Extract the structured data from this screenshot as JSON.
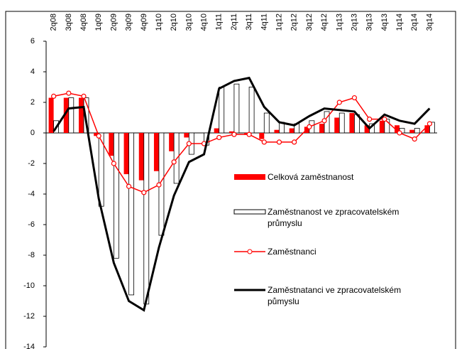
{
  "chart_data": {
    "type": "bar_line",
    "categories": [
      "2q08",
      "3q08",
      "4q08",
      "1q09",
      "2q09",
      "3q09",
      "4q09",
      "1q10",
      "2q10",
      "3q10",
      "4q10",
      "1q11",
      "2q11",
      "3q11",
      "4q11",
      "1q12",
      "2q12",
      "3q12",
      "4q12",
      "1q13",
      "2q13",
      "3q13",
      "4q13",
      "1q14",
      "2q14",
      "3q14"
    ],
    "series": [
      {
        "name": "Celková zaměstnanost",
        "type": "bar",
        "color": "#ff0000",
        "values": [
          2.3,
          2.3,
          2.3,
          -0.2,
          -1.5,
          -2.7,
          -3.1,
          -2.5,
          -1.2,
          -0.3,
          0.0,
          0.3,
          0.1,
          -0.1,
          -0.4,
          0.2,
          0.3,
          0.4,
          0.6,
          1.0,
          1.3,
          0.5,
          0.8,
          0.5,
          0.2,
          0.5
        ]
      },
      {
        "name": "Zaměstnanost ve zpracovatelském průmyslu",
        "type": "bar",
        "color": "#ffffff",
        "values": [
          0.8,
          2.3,
          2.3,
          -4.8,
          -8.2,
          -10.6,
          -11.2,
          -6.7,
          -3.3,
          -1.4,
          -0.8,
          3.0,
          3.2,
          3.0,
          1.3,
          0.7,
          0.6,
          0.8,
          1.4,
          1.3,
          1.2,
          0.6,
          0.9,
          0.3,
          0.3,
          0.7
        ]
      },
      {
        "name": "Zaměstnanci",
        "type": "line",
        "marker": true,
        "color": "#ff0000",
        "values": [
          2.4,
          2.6,
          2.4,
          -0.2,
          -2.0,
          -3.5,
          -3.9,
          -3.4,
          -1.9,
          -0.7,
          -0.7,
          -0.3,
          -0.1,
          -0.1,
          -0.6,
          -0.6,
          -0.6,
          0.4,
          0.8,
          2.0,
          2.3,
          0.9,
          0.9,
          0.0,
          -0.4,
          0.6
        ]
      },
      {
        "name": "Zaměstnatanci ve zpracovatelském půmyslu",
        "type": "line",
        "marker": false,
        "color": "#000000",
        "values": [
          0.1,
          1.6,
          1.7,
          -4.3,
          -8.5,
          -11.0,
          -11.6,
          -7.5,
          -4.1,
          -1.9,
          -1.4,
          2.9,
          3.4,
          3.6,
          1.7,
          0.7,
          0.5,
          1.1,
          1.6,
          1.5,
          1.4,
          0.3,
          1.2,
          0.8,
          0.6,
          1.6
        ]
      }
    ],
    "ylim": [
      -14,
      6
    ],
    "yticks": [
      -14,
      -12,
      -10,
      -8,
      -6,
      -4,
      -2,
      0,
      2,
      4,
      6
    ]
  }
}
